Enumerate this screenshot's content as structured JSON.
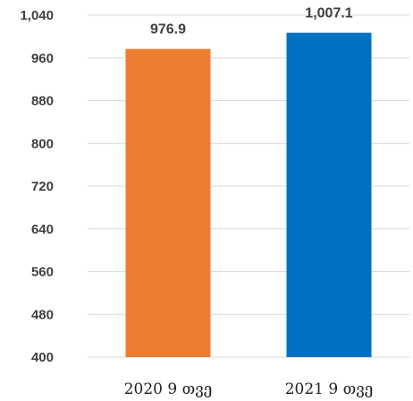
{
  "chart_data": {
    "type": "bar",
    "categories": [
      "2020 9 თვე",
      "2021 9 თვე"
    ],
    "values": [
      976.9,
      1007.1
    ],
    "value_labels": [
      "976.9",
      "1,007.1"
    ],
    "colors": [
      "#ED7D31",
      "#0070C0"
    ],
    "ylim": [
      400,
      1040
    ],
    "yticks": [
      400,
      480,
      560,
      640,
      720,
      800,
      880,
      960,
      1040
    ],
    "ytick_labels": [
      "400",
      "480",
      "560",
      "640",
      "720",
      "800",
      "880",
      "960",
      "1,040"
    ],
    "grid": true,
    "title": "",
    "xlabel": "",
    "ylabel": ""
  }
}
